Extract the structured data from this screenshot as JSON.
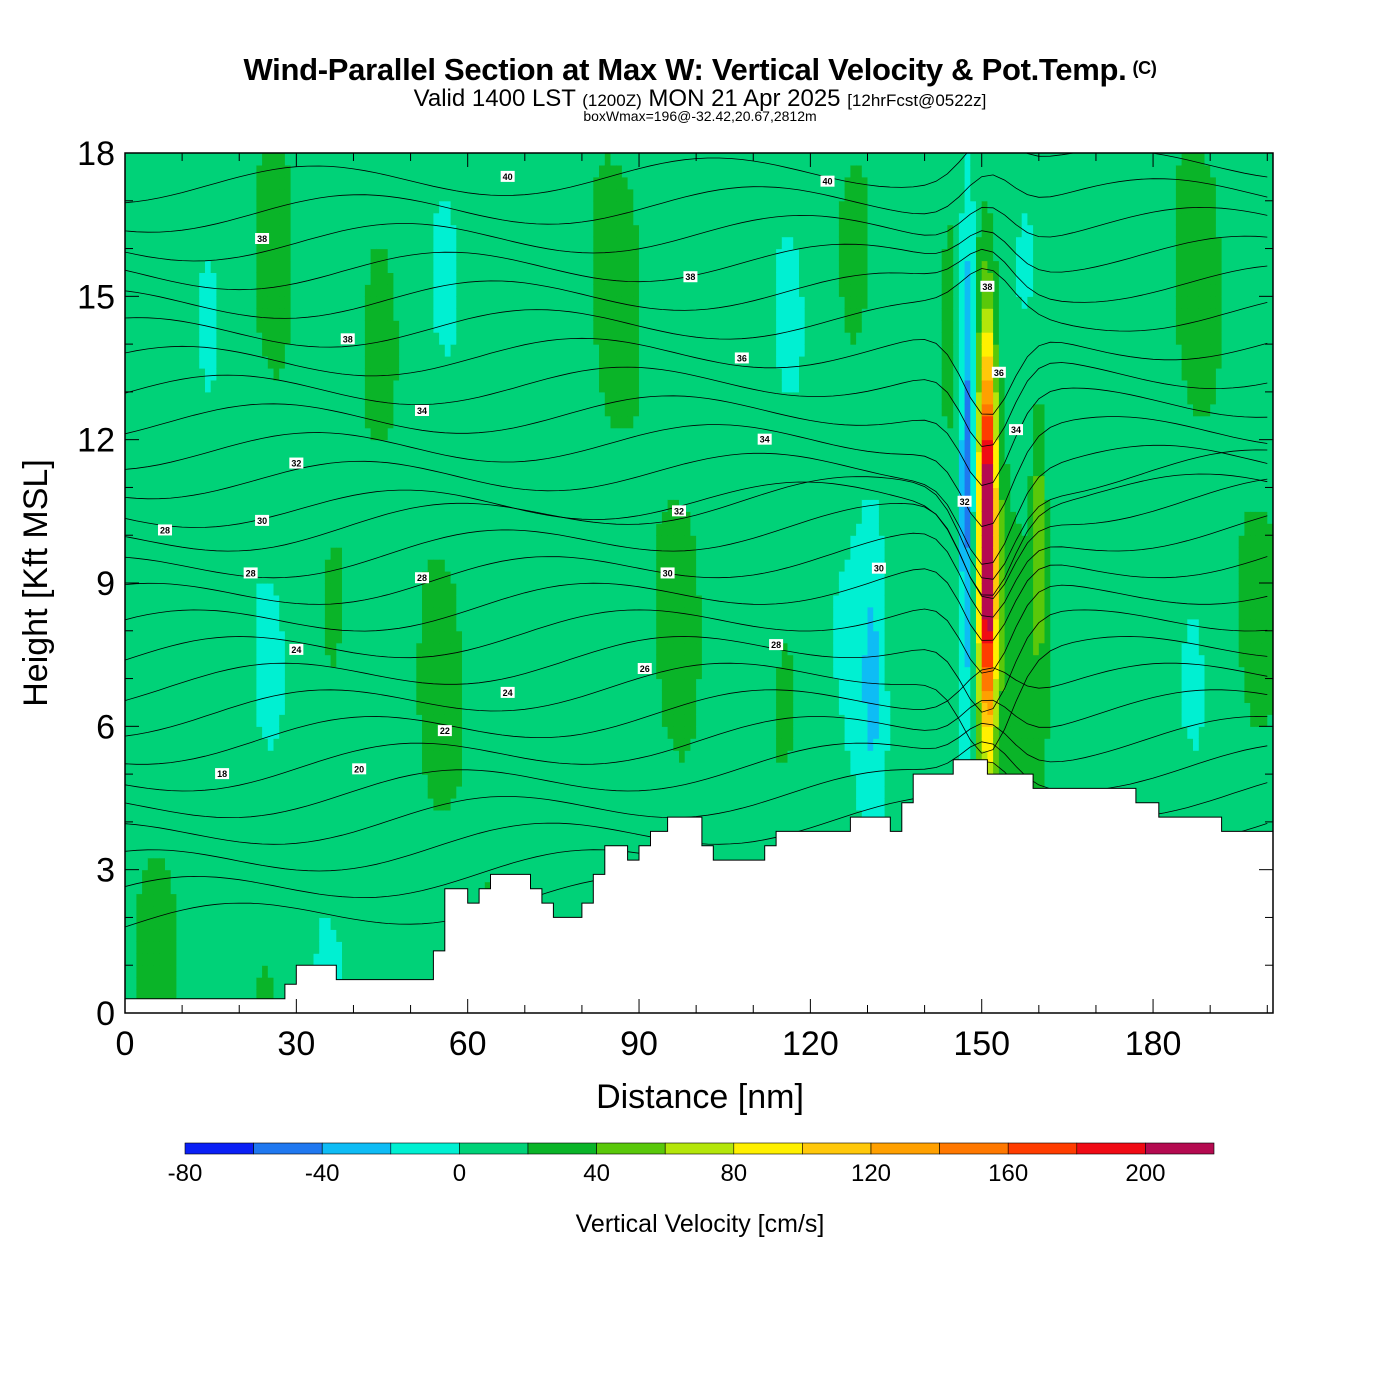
{
  "header": {
    "title": "Wind-Parallel Section at Max W: Vertical Velocity & Pot.Temp.",
    "title_mark": "(C)",
    "valid_prefix": "Valid 1400 LST",
    "valid_utc": "(1200Z)",
    "valid_date": "MON 21 Apr 2025",
    "forecast": "[12hrFcst@0522z]",
    "box_info": "boxWmax=196@-32.42,20.67,2812m"
  },
  "chart_data": {
    "type": "heatmap",
    "xlabel": "Distance [nm]",
    "ylabel": "Height [Kft MSL]",
    "xlim": [
      0,
      201
    ],
    "ylim": [
      0,
      18
    ],
    "x_ticks": [
      0,
      30,
      60,
      90,
      120,
      150,
      180
    ],
    "y_ticks": [
      0,
      3,
      6,
      9,
      12,
      15,
      18
    ],
    "colorbar": {
      "label": "Vertical Velocity [cm/s]",
      "range": [
        -80,
        220
      ],
      "step": 20,
      "tick_values": [
        -80,
        -40,
        0,
        40,
        80,
        120,
        160,
        200
      ],
      "colors": [
        "#0a1ff5",
        "#1f78f0",
        "#0ebcf5",
        "#00f0d2",
        "#00d278",
        "#0ab428",
        "#5ac80a",
        "#b4e60a",
        "#fff000",
        "#ffc80a",
        "#ffa000",
        "#ff7800",
        "#ff3c00",
        "#f00a14",
        "#b40a50"
      ]
    },
    "terrain": [
      [
        0,
        0.3
      ],
      [
        28,
        0.3
      ],
      [
        28,
        0.6
      ],
      [
        30,
        0.6
      ],
      [
        30,
        1.0
      ],
      [
        37,
        1.0
      ],
      [
        37,
        0.7
      ],
      [
        54,
        0.7
      ],
      [
        54,
        1.3
      ],
      [
        56,
        1.3
      ],
      [
        56,
        2.6
      ],
      [
        60,
        2.6
      ],
      [
        60,
        2.3
      ],
      [
        62,
        2.3
      ],
      [
        62,
        2.6
      ],
      [
        64,
        2.6
      ],
      [
        64,
        2.9
      ],
      [
        71,
        2.9
      ],
      [
        71,
        2.6
      ],
      [
        73,
        2.6
      ],
      [
        73,
        2.3
      ],
      [
        75,
        2.3
      ],
      [
        75,
        2.0
      ],
      [
        80,
        2.0
      ],
      [
        80,
        2.3
      ],
      [
        82,
        2.3
      ],
      [
        82,
        2.9
      ],
      [
        84,
        2.9
      ],
      [
        84,
        3.5
      ],
      [
        88,
        3.5
      ],
      [
        88,
        3.2
      ],
      [
        90,
        3.2
      ],
      [
        90,
        3.5
      ],
      [
        92,
        3.5
      ],
      [
        92,
        3.8
      ],
      [
        95,
        3.8
      ],
      [
        95,
        4.1
      ],
      [
        101,
        4.1
      ],
      [
        101,
        3.5
      ],
      [
        103,
        3.5
      ],
      [
        103,
        3.2
      ],
      [
        112,
        3.2
      ],
      [
        112,
        3.5
      ],
      [
        114,
        3.5
      ],
      [
        114,
        3.8
      ],
      [
        127,
        3.8
      ],
      [
        127,
        4.1
      ],
      [
        134,
        4.1
      ],
      [
        134,
        3.8
      ],
      [
        136,
        3.8
      ],
      [
        136,
        4.4
      ],
      [
        138,
        4.4
      ],
      [
        138,
        5.0
      ],
      [
        145,
        5.0
      ],
      [
        145,
        5.3
      ],
      [
        151,
        5.3
      ],
      [
        151,
        5.0
      ],
      [
        159,
        5.0
      ],
      [
        159,
        4.7
      ],
      [
        177,
        4.7
      ],
      [
        177,
        4.4
      ],
      [
        181,
        4.4
      ],
      [
        181,
        4.1
      ],
      [
        192,
        4.1
      ],
      [
        192,
        3.8
      ],
      [
        201,
        3.8
      ]
    ],
    "theta_contour_labels": [
      {
        "value": "40",
        "x": 67,
        "y": 17.5
      },
      {
        "value": "40",
        "x": 123,
        "y": 17.4
      },
      {
        "value": "38",
        "x": 24,
        "y": 16.2
      },
      {
        "value": "38",
        "x": 99,
        "y": 15.4
      },
      {
        "value": "38",
        "x": 151,
        "y": 15.2
      },
      {
        "value": "38",
        "x": 39,
        "y": 14.1
      },
      {
        "value": "36",
        "x": 108,
        "y": 13.7
      },
      {
        "value": "36",
        "x": 153,
        "y": 13.4
      },
      {
        "value": "34",
        "x": 52,
        "y": 12.6
      },
      {
        "value": "34",
        "x": 112,
        "y": 12.0
      },
      {
        "value": "34",
        "x": 156,
        "y": 12.2
      },
      {
        "value": "32",
        "x": 30,
        "y": 11.5
      },
      {
        "value": "32",
        "x": 97,
        "y": 10.5
      },
      {
        "value": "32",
        "x": 147,
        "y": 10.7
      },
      {
        "value": "30",
        "x": 24,
        "y": 10.3
      },
      {
        "value": "30",
        "x": 95,
        "y": 9.2
      },
      {
        "value": "30",
        "x": 132,
        "y": 9.3
      },
      {
        "value": "28",
        "x": 7,
        "y": 10.1
      },
      {
        "value": "28",
        "x": 22,
        "y": 9.2
      },
      {
        "value": "28",
        "x": 52,
        "y": 9.1
      },
      {
        "value": "28",
        "x": 114,
        "y": 7.7
      },
      {
        "value": "26",
        "x": 91,
        "y": 7.2
      },
      {
        "value": "24",
        "x": 30,
        "y": 7.6
      },
      {
        "value": "24",
        "x": 67,
        "y": 6.7
      },
      {
        "value": "22",
        "x": 56,
        "y": 5.9
      },
      {
        "value": "20",
        "x": 41,
        "y": 5.1
      },
      {
        "value": "18",
        "x": 17,
        "y": 5.0
      }
    ],
    "w_features": [
      {
        "cx": 151,
        "cy": 10.0,
        "rx": 1.3,
        "ry": 3.6,
        "value": 196
      },
      {
        "cx": 151,
        "cy": 9.0,
        "rx": 2.4,
        "ry": 5.0,
        "value": 60
      },
      {
        "cx": 147.5,
        "cy": 12.0,
        "rx": 1.4,
        "ry": 5.5,
        "value": -70
      },
      {
        "cx": 131,
        "cy": 7.0,
        "rx": 2.5,
        "ry": 3.5,
        "value": -30
      },
      {
        "cx": 160,
        "cy": 10.0,
        "rx": 1.2,
        "ry": 3.0,
        "value": 40
      }
    ]
  }
}
